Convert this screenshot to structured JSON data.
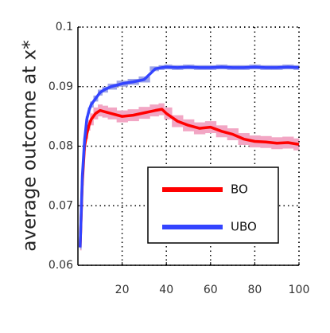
{
  "chart_data": {
    "type": "line",
    "y_label": "average outcome at x*",
    "x": [
      1,
      2,
      3,
      4,
      5,
      6,
      8,
      10,
      12,
      15,
      20,
      25,
      30,
      35,
      38,
      40,
      45,
      50,
      55,
      60,
      65,
      70,
      75,
      80,
      85,
      90,
      95,
      100
    ],
    "series": [
      {
        "name": "BO",
        "color": "#ff0000",
        "band_color": "#f2a6c4",
        "values": [
          0.063,
          0.074,
          0.08,
          0.082,
          0.0835,
          0.0845,
          0.0855,
          0.086,
          0.0858,
          0.0855,
          0.085,
          0.0852,
          0.0856,
          0.086,
          0.0862,
          0.0855,
          0.0842,
          0.0835,
          0.083,
          0.0832,
          0.0825,
          0.082,
          0.0812,
          0.0808,
          0.0807,
          0.0805,
          0.0806,
          0.0803
        ],
        "error": [
          0.0005,
          0.0006,
          0.0007,
          0.0008,
          0.0009,
          0.001,
          0.001,
          0.001,
          0.001,
          0.001,
          0.001,
          0.001,
          0.001,
          0.001,
          0.001,
          0.001,
          0.001,
          0.001,
          0.001,
          0.001,
          0.001,
          0.001,
          0.001,
          0.001,
          0.001,
          0.001,
          0.001,
          0.001
        ]
      },
      {
        "name": "UBO",
        "color": "#3344ff",
        "band_color": "#9ea4e6",
        "values": [
          0.063,
          0.075,
          0.081,
          0.0845,
          0.086,
          0.087,
          0.088,
          0.089,
          0.0895,
          0.09,
          0.0905,
          0.0908,
          0.0912,
          0.093,
          0.0932,
          0.0933,
          0.0932,
          0.0933,
          0.0932,
          0.0932,
          0.0933,
          0.0932,
          0.0932,
          0.0933,
          0.0932,
          0.0932,
          0.0933,
          0.0932
        ],
        "error": [
          0.0003,
          0.0004,
          0.0005,
          0.0005,
          0.0005,
          0.0005,
          0.0005,
          0.0005,
          0.0005,
          0.0005,
          0.0005,
          0.0005,
          0.0005,
          0.0004,
          0.0004,
          0.0004,
          0.0004,
          0.0004,
          0.0004,
          0.0004,
          0.0004,
          0.0004,
          0.0004,
          0.0004,
          0.0004,
          0.0004,
          0.0004,
          0.0004
        ]
      }
    ],
    "xlim": [
      0,
      100
    ],
    "xticks": [
      20,
      40,
      60,
      80,
      100
    ],
    "ylim": [
      0.06,
      0.1
    ],
    "yticks": [
      0.06,
      0.07,
      0.08,
      0.09,
      0.1
    ],
    "grid": true,
    "legend": "lower right"
  }
}
